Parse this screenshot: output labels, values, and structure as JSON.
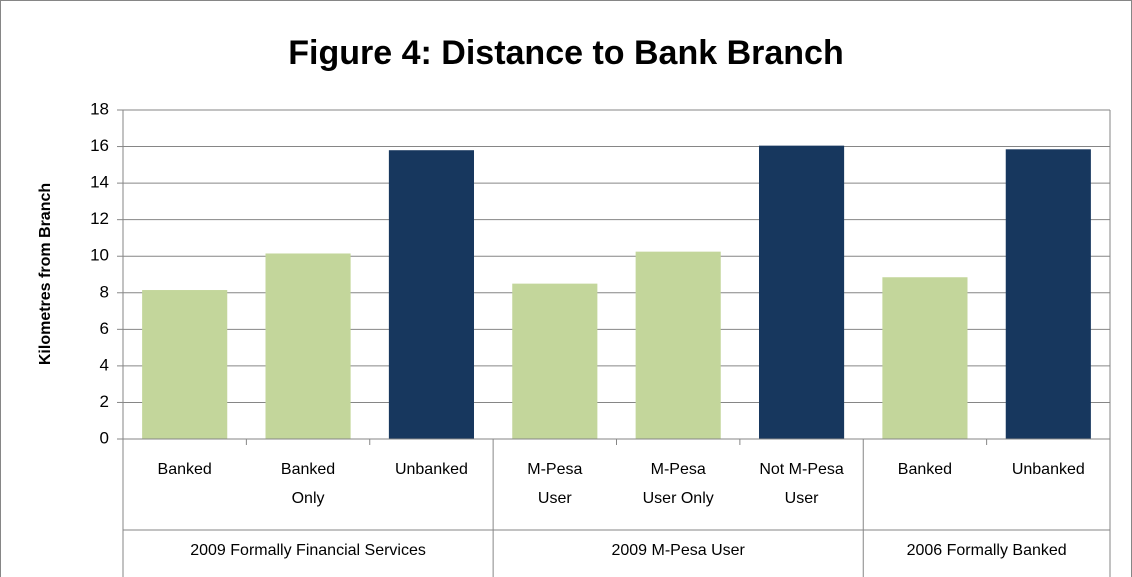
{
  "chart_data": {
    "type": "bar",
    "title": "Figure 4: Distance to Bank Branch",
    "y_label": "Kilometres from Branch",
    "groups": [
      {
        "name": "2009 Formally Financial Services",
        "categories": [
          "Banked",
          "Banked Only",
          "Unbanked"
        ],
        "values": [
          8.15,
          10.15,
          15.8
        ],
        "colors": [
          "#c3d69b",
          "#c3d69b",
          "#17375e"
        ]
      },
      {
        "name": "2009 M-Pesa User",
        "categories": [
          "M-Pesa User",
          "M-Pesa User Only",
          "Not M-Pesa User"
        ],
        "values": [
          8.5,
          10.25,
          16.05
        ],
        "colors": [
          "#c3d69b",
          "#c3d69b",
          "#17375e"
        ]
      },
      {
        "name": "2006 Formally Banked",
        "categories": [
          "Banked",
          "Unbanked"
        ],
        "values": [
          8.85,
          15.85
        ],
        "colors": [
          "#c3d69b",
          "#17375e"
        ]
      }
    ],
    "ylim": [
      0,
      18
    ],
    "yticks": [
      0,
      2,
      4,
      6,
      8,
      10,
      12,
      14,
      16,
      18
    ],
    "grid": true
  }
}
